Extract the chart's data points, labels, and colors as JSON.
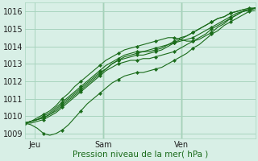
{
  "xlabel": "Pression niveau de la mer( hPa )",
  "bg_color": "#d8efe6",
  "grid_color": "#a8d4be",
  "line_color": "#1a6b1a",
  "ylim": [
    1008.7,
    1016.5
  ],
  "xlim": [
    0,
    47
  ],
  "xtick_positions": [
    2,
    16,
    32
  ],
  "xtick_labels": [
    "Jeu",
    "Sam",
    "Ven"
  ],
  "ytick_positions": [
    1009,
    1010,
    1011,
    1012,
    1013,
    1014,
    1015,
    1016
  ],
  "vlines": [
    16,
    32
  ],
  "series": [
    [
      1009.6,
      1009.7,
      1009.8,
      1009.9,
      1010.1,
      1010.3,
      1010.6,
      1010.9,
      1011.2,
      1011.5,
      1011.8,
      1012.1,
      1012.4,
      1012.7,
      1013.0,
      1013.2,
      1013.4,
      1013.5,
      1013.6,
      1013.7,
      1013.7,
      1013.8,
      1013.9,
      1014.1,
      1014.2,
      1014.3,
      1014.4,
      1014.5,
      1014.7,
      1014.9,
      1015.1,
      1015.3,
      1015.5,
      1015.7,
      1015.9,
      1016.0,
      1016.1,
      1016.2
    ],
    [
      1009.6,
      1009.6,
      1009.7,
      1009.8,
      1010.0,
      1010.2,
      1010.5,
      1010.8,
      1011.1,
      1011.4,
      1011.7,
      1012.0,
      1012.3,
      1012.6,
      1012.8,
      1013.0,
      1013.1,
      1013.2,
      1013.2,
      1013.3,
      1013.3,
      1013.4,
      1013.5,
      1013.6,
      1013.7,
      1013.9,
      1014.1,
      1014.3,
      1014.5,
      1014.7,
      1015.0,
      1015.2,
      1015.4,
      1015.6,
      1015.8,
      1016.0,
      1016.1,
      1016.2
    ],
    [
      1009.6,
      1009.5,
      1009.3,
      1009.0,
      1008.9,
      1009.0,
      1009.2,
      1009.5,
      1009.9,
      1010.3,
      1010.7,
      1011.0,
      1011.3,
      1011.6,
      1011.9,
      1012.1,
      1012.3,
      1012.4,
      1012.5,
      1012.5,
      1012.6,
      1012.7,
      1012.8,
      1013.0,
      1013.2,
      1013.4,
      1013.6,
      1013.9,
      1014.1,
      1014.4,
      1014.7,
      1014.9,
      1015.2,
      1015.4,
      1015.6,
      1015.8,
      1016.0,
      1016.1
    ],
    [
      1009.6,
      1009.7,
      1009.8,
      1010.0,
      1010.2,
      1010.5,
      1010.8,
      1011.1,
      1011.4,
      1011.7,
      1012.0,
      1012.3,
      1012.6,
      1012.9,
      1013.1,
      1013.3,
      1013.5,
      1013.6,
      1013.7,
      1013.7,
      1013.8,
      1013.9,
      1014.0,
      1014.1,
      1014.3,
      1014.5,
      1014.6,
      1014.8,
      1015.0,
      1015.2,
      1015.4,
      1015.6,
      1015.7,
      1015.9,
      1016.0,
      1016.1,
      1016.1,
      1016.2
    ],
    [
      1009.6,
      1009.7,
      1009.8,
      1009.9,
      1010.1,
      1010.4,
      1010.7,
      1011.0,
      1011.3,
      1011.6,
      1011.9,
      1012.2,
      1012.5,
      1012.7,
      1013.0,
      1013.2,
      1013.3,
      1013.4,
      1013.5,
      1013.5,
      1013.6,
      1013.7,
      1013.8,
      1014.0,
      1014.2,
      1014.4,
      1014.6,
      1014.8,
      1015.0,
      1015.2,
      1015.4,
      1015.6,
      1015.7,
      1015.9,
      1016.0,
      1016.1,
      1016.2,
      1016.2
    ],
    [
      1009.6,
      1009.7,
      1009.9,
      1010.1,
      1010.3,
      1010.6,
      1011.0,
      1011.3,
      1011.7,
      1012.0,
      1012.3,
      1012.6,
      1012.9,
      1013.2,
      1013.4,
      1013.6,
      1013.8,
      1013.9,
      1014.0,
      1014.1,
      1014.2,
      1014.3,
      1014.4,
      1014.5,
      1014.5,
      1014.4,
      1014.3,
      1014.3,
      1014.4,
      1014.6,
      1014.8,
      1015.1,
      1015.3,
      1015.6,
      1015.8,
      1016.0,
      1016.1,
      1016.2
    ]
  ]
}
